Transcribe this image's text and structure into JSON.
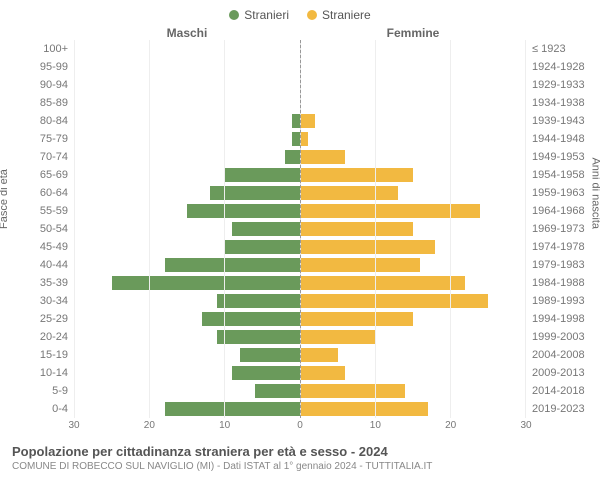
{
  "legend": {
    "male": "Stranieri",
    "female": "Straniere",
    "male_color": "#6a9a5b",
    "female_color": "#f2b941"
  },
  "headers": {
    "left": "Maschi",
    "right": "Femmine"
  },
  "axis_labels": {
    "left": "Fasce di età",
    "right": "Anni di nascita"
  },
  "chart": {
    "type": "population-pyramid",
    "xmax": 30,
    "xticks": [
      0,
      10,
      20,
      30
    ],
    "background_color": "#ffffff",
    "grid_color": "#eeeeee",
    "centerline_color": "#999999",
    "bar_height_ratio": 0.78,
    "age_bands": [
      "100+",
      "95-99",
      "90-94",
      "85-89",
      "80-84",
      "75-79",
      "70-74",
      "65-69",
      "60-64",
      "55-59",
      "50-54",
      "45-49",
      "40-44",
      "35-39",
      "30-34",
      "25-29",
      "20-24",
      "15-19",
      "10-14",
      "5-9",
      "0-4"
    ],
    "birth_bands": [
      "≤ 1923",
      "1924-1928",
      "1929-1933",
      "1934-1938",
      "1939-1943",
      "1944-1948",
      "1949-1953",
      "1954-1958",
      "1959-1963",
      "1964-1968",
      "1969-1973",
      "1974-1978",
      "1979-1983",
      "1984-1988",
      "1989-1993",
      "1994-1998",
      "1999-2003",
      "2004-2008",
      "2009-2013",
      "2014-2018",
      "2019-2023"
    ],
    "male": [
      0,
      0,
      0,
      0,
      1,
      1,
      2,
      10,
      12,
      15,
      9,
      10,
      18,
      25,
      11,
      13,
      11,
      8,
      9,
      6,
      18
    ],
    "female": [
      0,
      0,
      0,
      0,
      2,
      1,
      6,
      15,
      13,
      24,
      15,
      18,
      16,
      22,
      25,
      15,
      10,
      5,
      6,
      14,
      17
    ]
  },
  "footer": {
    "title": "Popolazione per cittadinanza straniera per età e sesso - 2024",
    "subtitle": "COMUNE DI ROBECCO SUL NAVIGLIO (MI) - Dati ISTAT al 1° gennaio 2024 - TUTTITALIA.IT"
  }
}
